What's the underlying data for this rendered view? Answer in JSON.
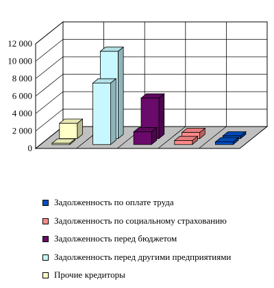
{
  "chart_data": {
    "type": "bar",
    "style": "3d-grouped-by-depth",
    "ylim": [
      0,
      12000
    ],
    "y_ticks": [
      "0",
      "2 000",
      "4 000",
      "6 000",
      "8 000",
      "10 000",
      "12 000"
    ],
    "x_categories": [
      "",
      "",
      "",
      "",
      ""
    ],
    "grid": true,
    "legend_position": "bottom",
    "series": [
      {
        "name": "Задолженность по оплате труда",
        "color": "#0050c8",
        "values": [
          0,
          0,
          0,
          0,
          300
        ]
      },
      {
        "name": "Задолженность по социальному страхованию",
        "color": "#ff8a8a",
        "values": [
          0,
          0,
          0,
          450,
          0
        ]
      },
      {
        "name": "Задолженность перед бюджетом",
        "color": "#6a0a6a",
        "values": [
          0,
          0,
          1450,
          0,
          0
        ]
      },
      {
        "name": "Задолженность перед другими предприятиями",
        "color": "#c8f8ff",
        "values": [
          0,
          7050,
          0,
          0,
          0
        ]
      },
      {
        "name": "Прочие кредиторы",
        "color": "#ffffc8",
        "values": [
          150,
          0,
          0,
          0,
          0
        ]
      }
    ],
    "back_row": [
      {
        "category_index": 0,
        "value": 1750,
        "color": "#ffffc8"
      },
      {
        "category_index": 1,
        "value": 10000,
        "color": "#c8f8ff"
      },
      {
        "category_index": 2,
        "value": 4650,
        "color": "#6a0a6a"
      },
      {
        "category_index": 3,
        "value": 700,
        "color": "#ff8a8a"
      },
      {
        "category_index": 4,
        "value": 300,
        "color": "#0050c8"
      }
    ]
  }
}
